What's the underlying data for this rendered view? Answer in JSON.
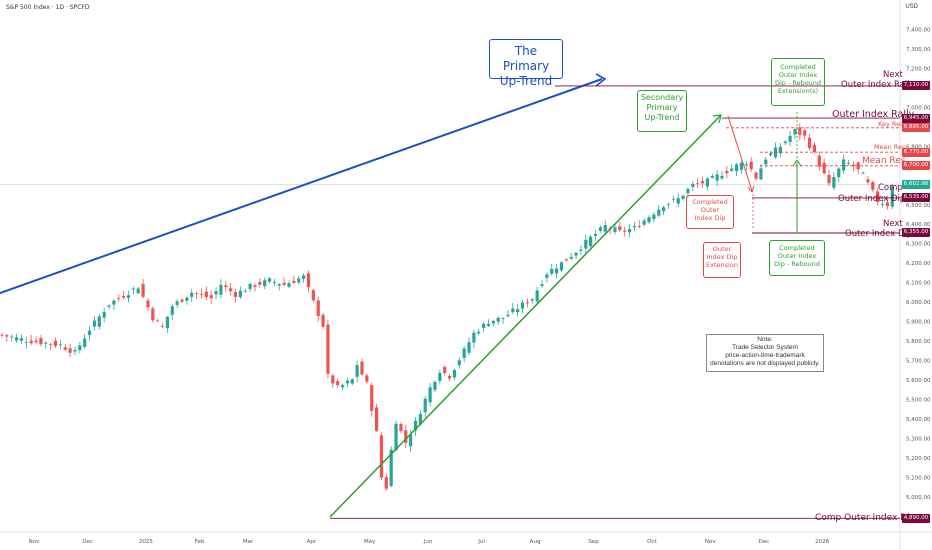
{
  "header": {
    "title": "S&P 500 Index · 1D · SPCFD",
    "currency": "USD"
  },
  "colors": {
    "up": "#26a69a",
    "down": "#ef5350",
    "maroon": "#7a0a3e",
    "blue": "#1d50c7",
    "green": "#2f9e2f",
    "red": "#e54848",
    "current": "#22ab94"
  },
  "chart_data": {
    "type": "candlestick",
    "ylim": [
      4830,
      7500
    ],
    "y_ticks": [
      "7,400.00",
      "7,300.00",
      "7,200.00",
      "7,100.00",
      "7,000.00",
      "6,900.00",
      "6,800.00",
      "6,700.00",
      "6,600.00",
      "6,500.00",
      "6,400.00",
      "6,300.00",
      "6,200.00",
      "6,100.00",
      "6,000.00",
      "5,900.00",
      "5,800.00",
      "5,700.00",
      "5,600.00",
      "5,500.00",
      "5,400.00",
      "5,300.00",
      "5,200.00",
      "5,100.00",
      "5,000.00",
      "4,900.00"
    ],
    "x_ticks": [
      "Nov",
      "Dec",
      "2025",
      "Feb",
      "Mar",
      "Apr",
      "May",
      "Jun",
      "Jul",
      "Aug",
      "Sep",
      "Oct",
      "Nov",
      "Dec",
      "2026"
    ],
    "close_path": [
      [
        0,
        5830
      ],
      [
        6,
        5800
      ],
      [
        12,
        5780
      ],
      [
        15,
        5740
      ],
      [
        18,
        5860
      ],
      [
        22,
        5990
      ],
      [
        26,
        6050
      ],
      [
        28,
        6080
      ],
      [
        31,
        5920
      ],
      [
        33,
        5870
      ],
      [
        35,
        5980
      ],
      [
        39,
        6050
      ],
      [
        43,
        6020
      ],
      [
        45,
        6090
      ],
      [
        48,
        6040
      ],
      [
        51,
        6080
      ],
      [
        55,
        6110
      ],
      [
        58,
        6090
      ],
      [
        62,
        6130
      ],
      [
        64,
        6000
      ],
      [
        66,
        5880
      ],
      [
        67,
        5620
      ],
      [
        69,
        5560
      ],
      [
        72,
        5600
      ],
      [
        73,
        5680
      ],
      [
        75,
        5580
      ],
      [
        77,
        5330
      ],
      [
        78,
        5100
      ],
      [
        79,
        5050
      ],
      [
        80,
        5240
      ],
      [
        81,
        5390
      ],
      [
        83,
        5280
      ],
      [
        85,
        5380
      ],
      [
        88,
        5560
      ],
      [
        90,
        5650
      ],
      [
        92,
        5620
      ],
      [
        95,
        5750
      ],
      [
        97,
        5840
      ],
      [
        100,
        5900
      ],
      [
        103,
        5920
      ],
      [
        106,
        5970
      ],
      [
        109,
        6020
      ],
      [
        112,
        6150
      ],
      [
        115,
        6200
      ],
      [
        118,
        6260
      ],
      [
        121,
        6330
      ],
      [
        124,
        6390
      ],
      [
        127,
        6360
      ],
      [
        130,
        6380
      ],
      [
        133,
        6440
      ],
      [
        136,
        6500
      ],
      [
        139,
        6530
      ],
      [
        142,
        6600
      ],
      [
        145,
        6620
      ],
      [
        148,
        6660
      ],
      [
        151,
        6700
      ],
      [
        153,
        6720
      ],
      [
        155,
        6640
      ],
      [
        157,
        6740
      ],
      [
        160,
        6800
      ],
      [
        163,
        6880
      ],
      [
        165,
        6850
      ],
      [
        167,
        6760
      ],
      [
        170,
        6600
      ],
      [
        173,
        6720
      ],
      [
        175,
        6700
      ],
      [
        177,
        6650
      ],
      [
        180,
        6520
      ],
      [
        182,
        6500
      ],
      [
        183,
        6602
      ]
    ],
    "price_tags": [
      {
        "value": 7110.0,
        "text": "7,110.00",
        "kind": "maroon"
      },
      {
        "value": 6945.0,
        "text": "6,945.00",
        "kind": "maroon"
      },
      {
        "value": 6895.0,
        "text": "6,895.00",
        "kind": "red"
      },
      {
        "value": 6770.0,
        "text": "6,770.00",
        "kind": "red"
      },
      {
        "value": 6700.0,
        "text": "6,700.00",
        "kind": "red"
      },
      {
        "value": 6602.98,
        "text": "6,602.98",
        "kind": "current"
      },
      {
        "value": 6535.0,
        "text": "6,535.00",
        "kind": "maroon"
      },
      {
        "value": 6355.0,
        "text": "6,355.00",
        "kind": "maroon"
      },
      {
        "value": 4890.0,
        "text": "4,890.00",
        "kind": "maroon"
      }
    ]
  },
  "annotations": {
    "primary": [
      "The Primary",
      "Up-Trend"
    ],
    "secondary": [
      "Secondary",
      "Primary",
      "Up-Trend"
    ],
    "completed_dip": [
      "Completed",
      "Outer",
      "Index Dip"
    ],
    "dip_extension": [
      "Outer",
      "Index Dip",
      "Extension"
    ],
    "rebound_ext": [
      "Completed",
      "Outer Index",
      "Dip - Rebound",
      "Extension(s)"
    ],
    "rebound": [
      "Completed",
      "Outer Index",
      "Dip - Rebound"
    ],
    "next_rally": [
      "Next",
      "Outer Index Rally"
    ],
    "rally": "Outer Index Rally",
    "key_res": "Key Res",
    "mean_res_small": "Mean Res",
    "mean_res": "Mean Res",
    "comp_dip": [
      "Comp",
      "Outer Index Dip"
    ],
    "next_dip": [
      "Next",
      "Outer Index Dip"
    ],
    "comp_outer_dip": "Comp Outer Index Dip",
    "note": [
      "Note:",
      "Trade Selector System",
      "price-action-time-trademark",
      "denotations are not displayed publicly."
    ]
  }
}
